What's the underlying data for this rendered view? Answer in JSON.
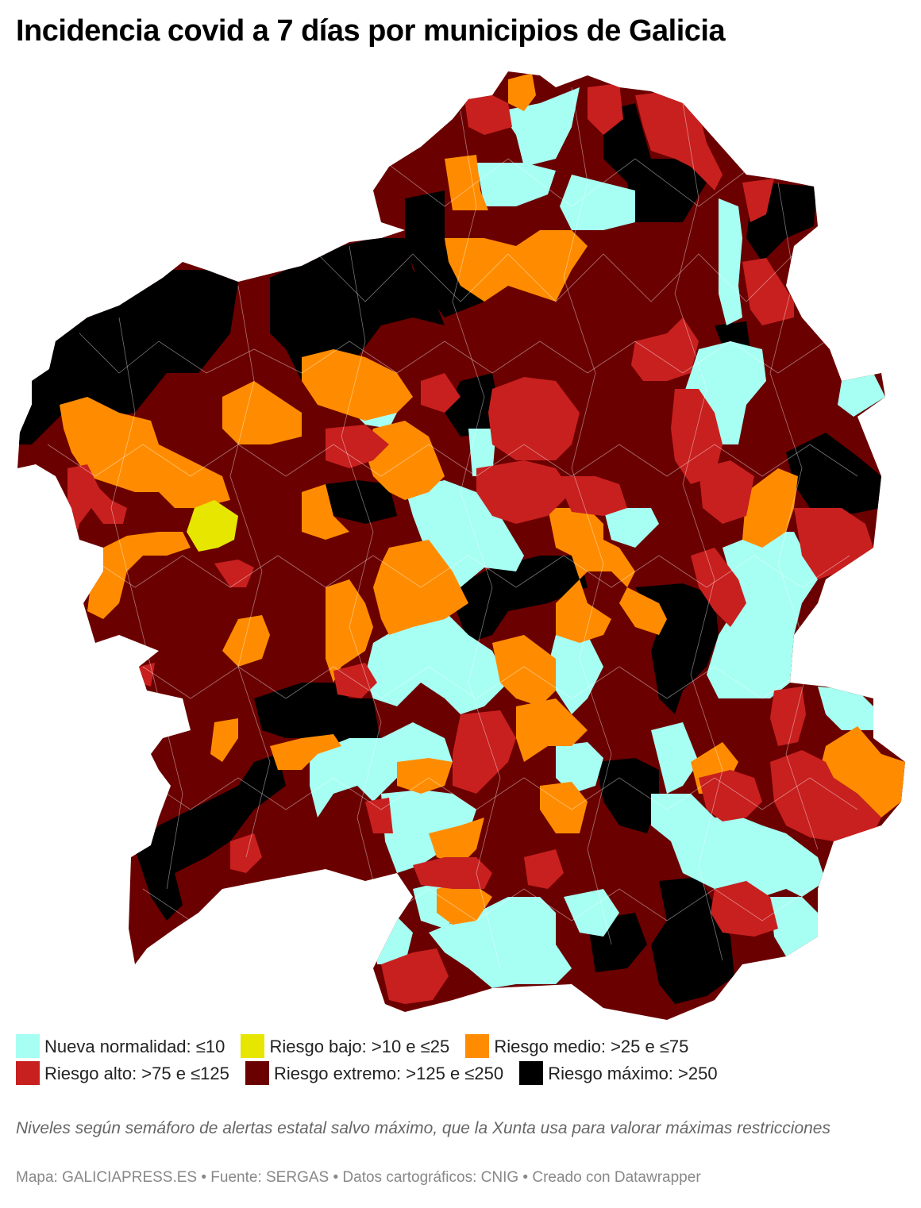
{
  "title": "Incidencia covid a 7 días por municipios de Galicia",
  "colors": {
    "nueva_normalidad": "#a6fff2",
    "riesgo_bajo": "#e6e600",
    "riesgo_medio": "#ff8c00",
    "riesgo_alto": "#c8201f",
    "riesgo_extremo": "#6b0000",
    "riesgo_maximo": "#000000"
  },
  "legend": [
    {
      "key": "nueva_normalidad",
      "label": "Nueva normalidad: ≤10",
      "color": "#a6fff2"
    },
    {
      "key": "riesgo_bajo",
      "label": "Riesgo bajo: >10 e ≤25",
      "color": "#e6e600"
    },
    {
      "key": "riesgo_medio",
      "label": "Riesgo medio: >25 e ≤75",
      "color": "#ff8c00"
    },
    {
      "key": "riesgo_alto",
      "label": "Riesgo alto: >75 e ≤125",
      "color": "#c8201f"
    },
    {
      "key": "riesgo_extremo",
      "label": "Riesgo extremo: >125 e ≤250",
      "color": "#6b0000"
    },
    {
      "key": "riesgo_maximo",
      "label": "Riesgo máximo: >250",
      "color": "#000000"
    }
  ],
  "note": "Niveles según semáforo de alertas estatal salvo máximo, que la Xunta usa para valorar máximas restricciones",
  "credits": "Mapa: GALICIAPRESS.ES • Fuente: SERGAS • Datos cartográficos: CNIG • Creado con Datawrapper"
}
